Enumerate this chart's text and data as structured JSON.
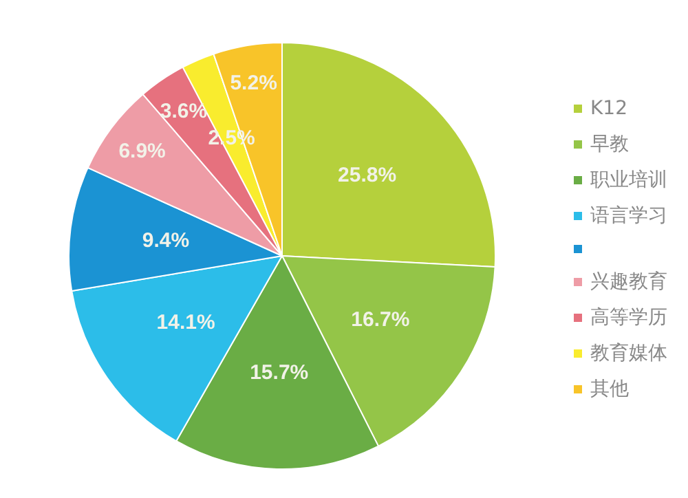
{
  "chart_data": {
    "type": "pie",
    "categories": [
      "K12",
      "早教",
      "职业培训",
      "语言学习",
      null,
      "兴趣教育",
      "高等学历",
      "教育媒体",
      "其他"
    ],
    "values": [
      25.8,
      16.7,
      15.7,
      14.1,
      9.4,
      6.9,
      3.6,
      2.5,
      5.2
    ],
    "value_labels": [
      "25.8%",
      "16.7%",
      "15.7%",
      "14.1%",
      "9.4%",
      "6.9%",
      "3.6%",
      "2.5%",
      "5.2%"
    ],
    "colors": [
      "#b5d03c",
      "#94c548",
      "#6aad45",
      "#2cbde9",
      "#1b93d3",
      "#ee9ca6",
      "#e6717e",
      "#f9ec2e",
      "#f8c429"
    ],
    "legend": "right"
  }
}
